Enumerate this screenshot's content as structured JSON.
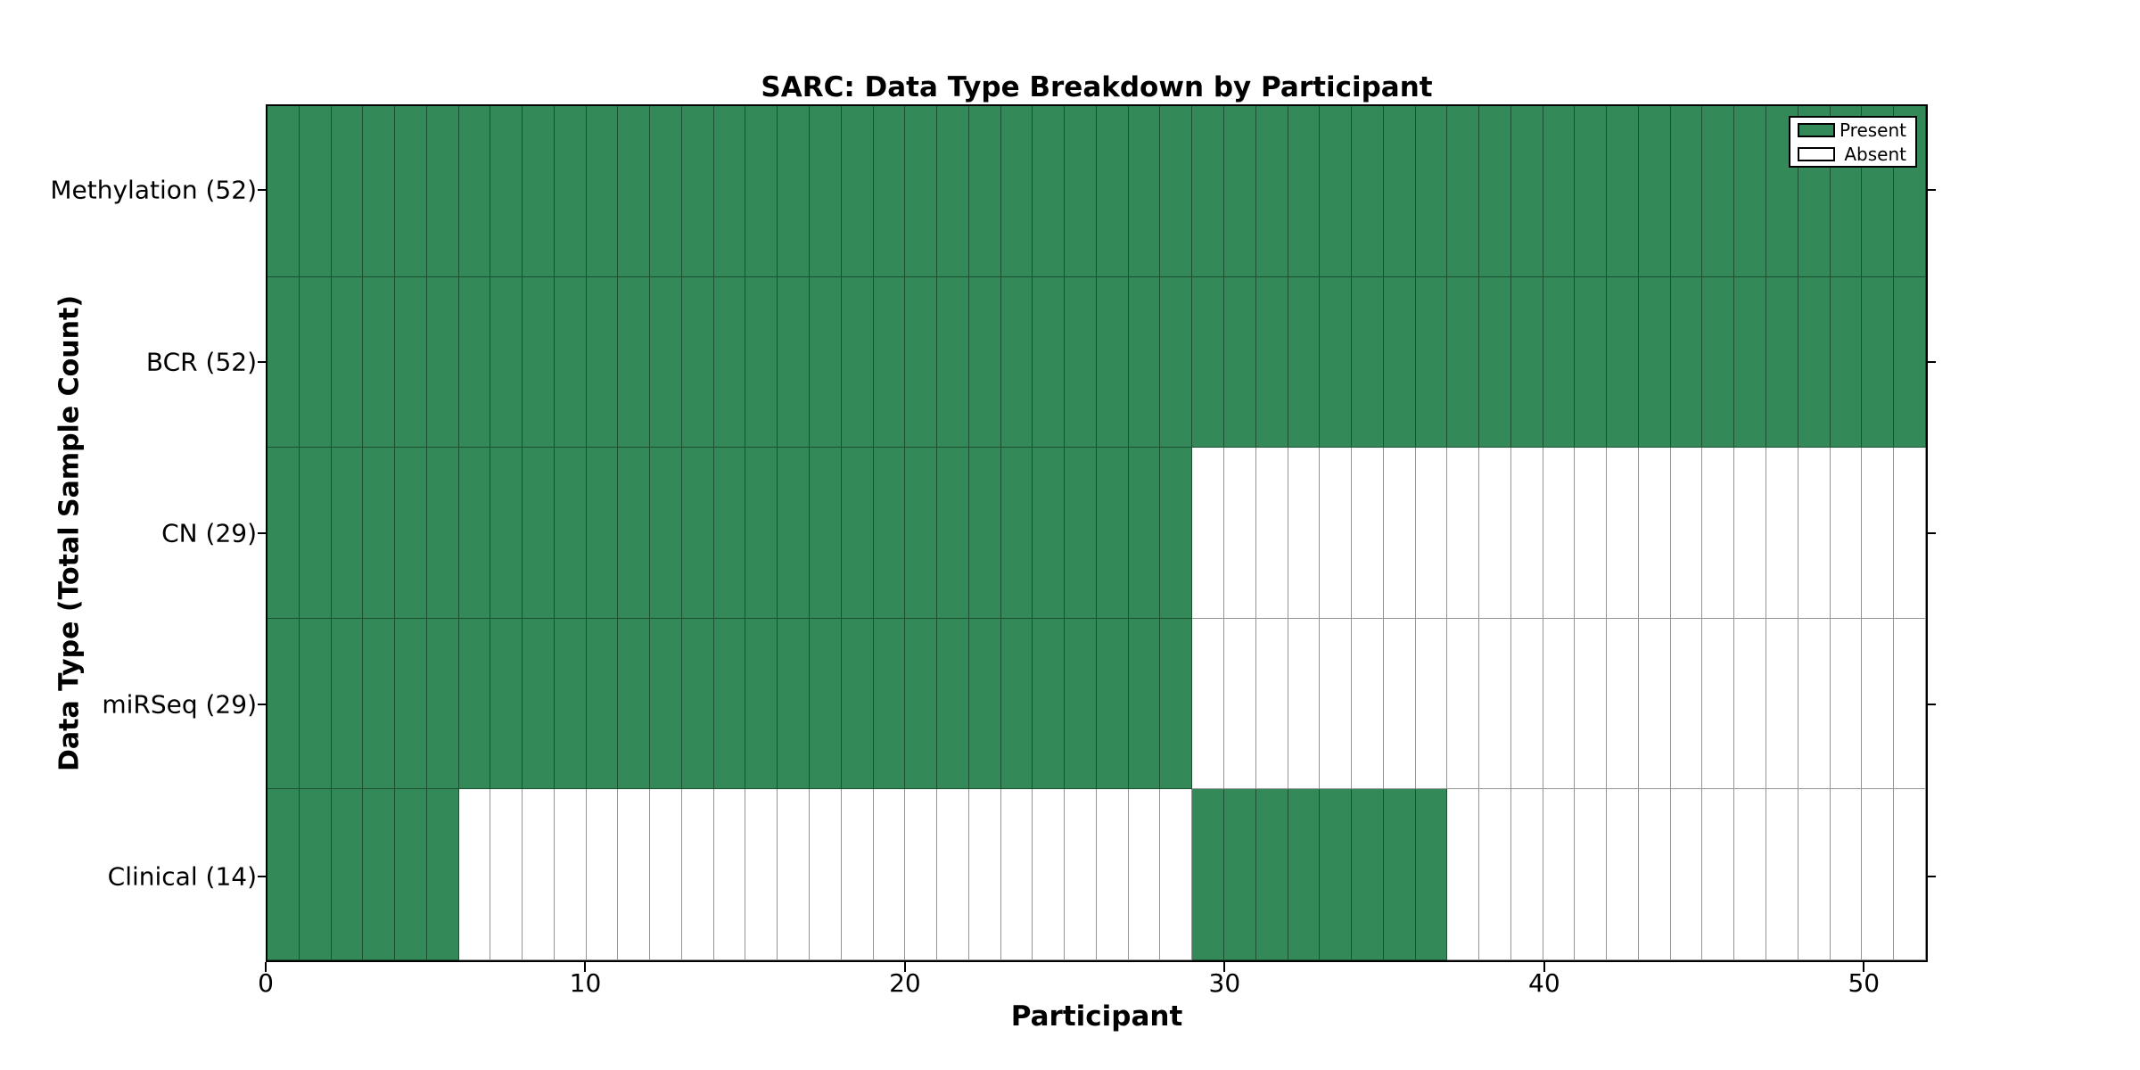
{
  "chart_data": {
    "type": "heatmap",
    "title": "SARC: Data Type Breakdown by Participant",
    "xlabel": "Participant",
    "ylabel": "Data Type (Total Sample Count)",
    "xlim": [
      0,
      52
    ],
    "x_ticks": [
      0,
      10,
      20,
      30,
      40,
      50
    ],
    "n_participants": 52,
    "grid": "per-cell borders",
    "legend_position": "upper right",
    "colors": {
      "present": "#338a58",
      "absent": "#ffffff",
      "cell_border": "rgba(0,0,0,0.42)",
      "axis": "#000000"
    },
    "legend": [
      {
        "label": "Present",
        "swatch": "present"
      },
      {
        "label": "Absent",
        "swatch": "absent"
      }
    ],
    "rows": [
      {
        "label": "Methylation (52)",
        "data_type": "Methylation",
        "total_samples": 52,
        "present_runs": [
          [
            0,
            52
          ]
        ]
      },
      {
        "label": "BCR (52)",
        "data_type": "BCR",
        "total_samples": 52,
        "present_runs": [
          [
            0,
            52
          ]
        ]
      },
      {
        "label": "CN (29)",
        "data_type": "CN",
        "total_samples": 29,
        "present_runs": [
          [
            0,
            29
          ]
        ]
      },
      {
        "label": "miRSeq (29)",
        "data_type": "miRSeq",
        "total_samples": 29,
        "present_runs": [
          [
            0,
            29
          ]
        ]
      },
      {
        "label": "Clinical (14)",
        "data_type": "Clinical",
        "total_samples": 14,
        "present_runs": [
          [
            0,
            6
          ],
          [
            29,
            37
          ]
        ]
      }
    ]
  }
}
